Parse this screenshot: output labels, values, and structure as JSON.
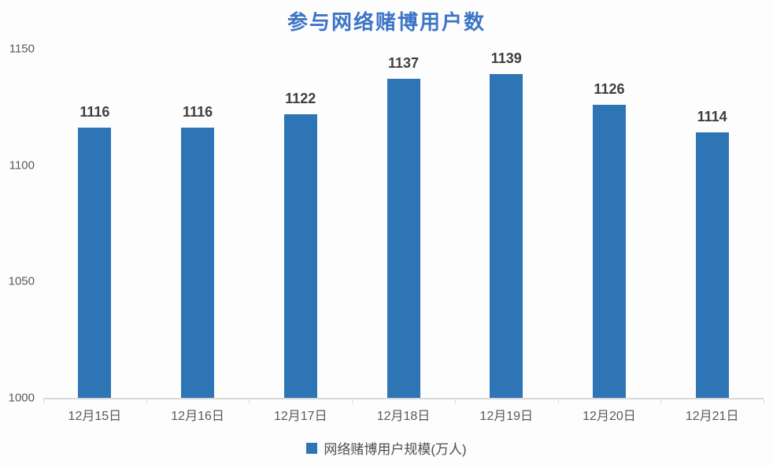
{
  "chart_data": {
    "type": "bar",
    "title": "参与网络赌博用户数",
    "categories": [
      "12月15日",
      "12月16日",
      "12月17日",
      "12月18日",
      "12月19日",
      "12月20日",
      "12月21日"
    ],
    "values": [
      1116,
      1116,
      1122,
      1137,
      1139,
      1126,
      1114
    ],
    "series_name": "网络赌博用户规模(万人)",
    "xlabel": "",
    "ylabel": "",
    "ylim": [
      1000,
      1150
    ],
    "yticks": [
      1000,
      1050,
      1100,
      1150
    ],
    "grid": false,
    "legend_position": "bottom",
    "colors": {
      "bar": "#2E75B6",
      "title": "#3D74C6",
      "value_label": "#3F3F3F",
      "axis_text": "#595959",
      "axis_line": "#D9D9D9",
      "legend_text": "#4D4D4D",
      "background": "#FDFDFD"
    }
  }
}
